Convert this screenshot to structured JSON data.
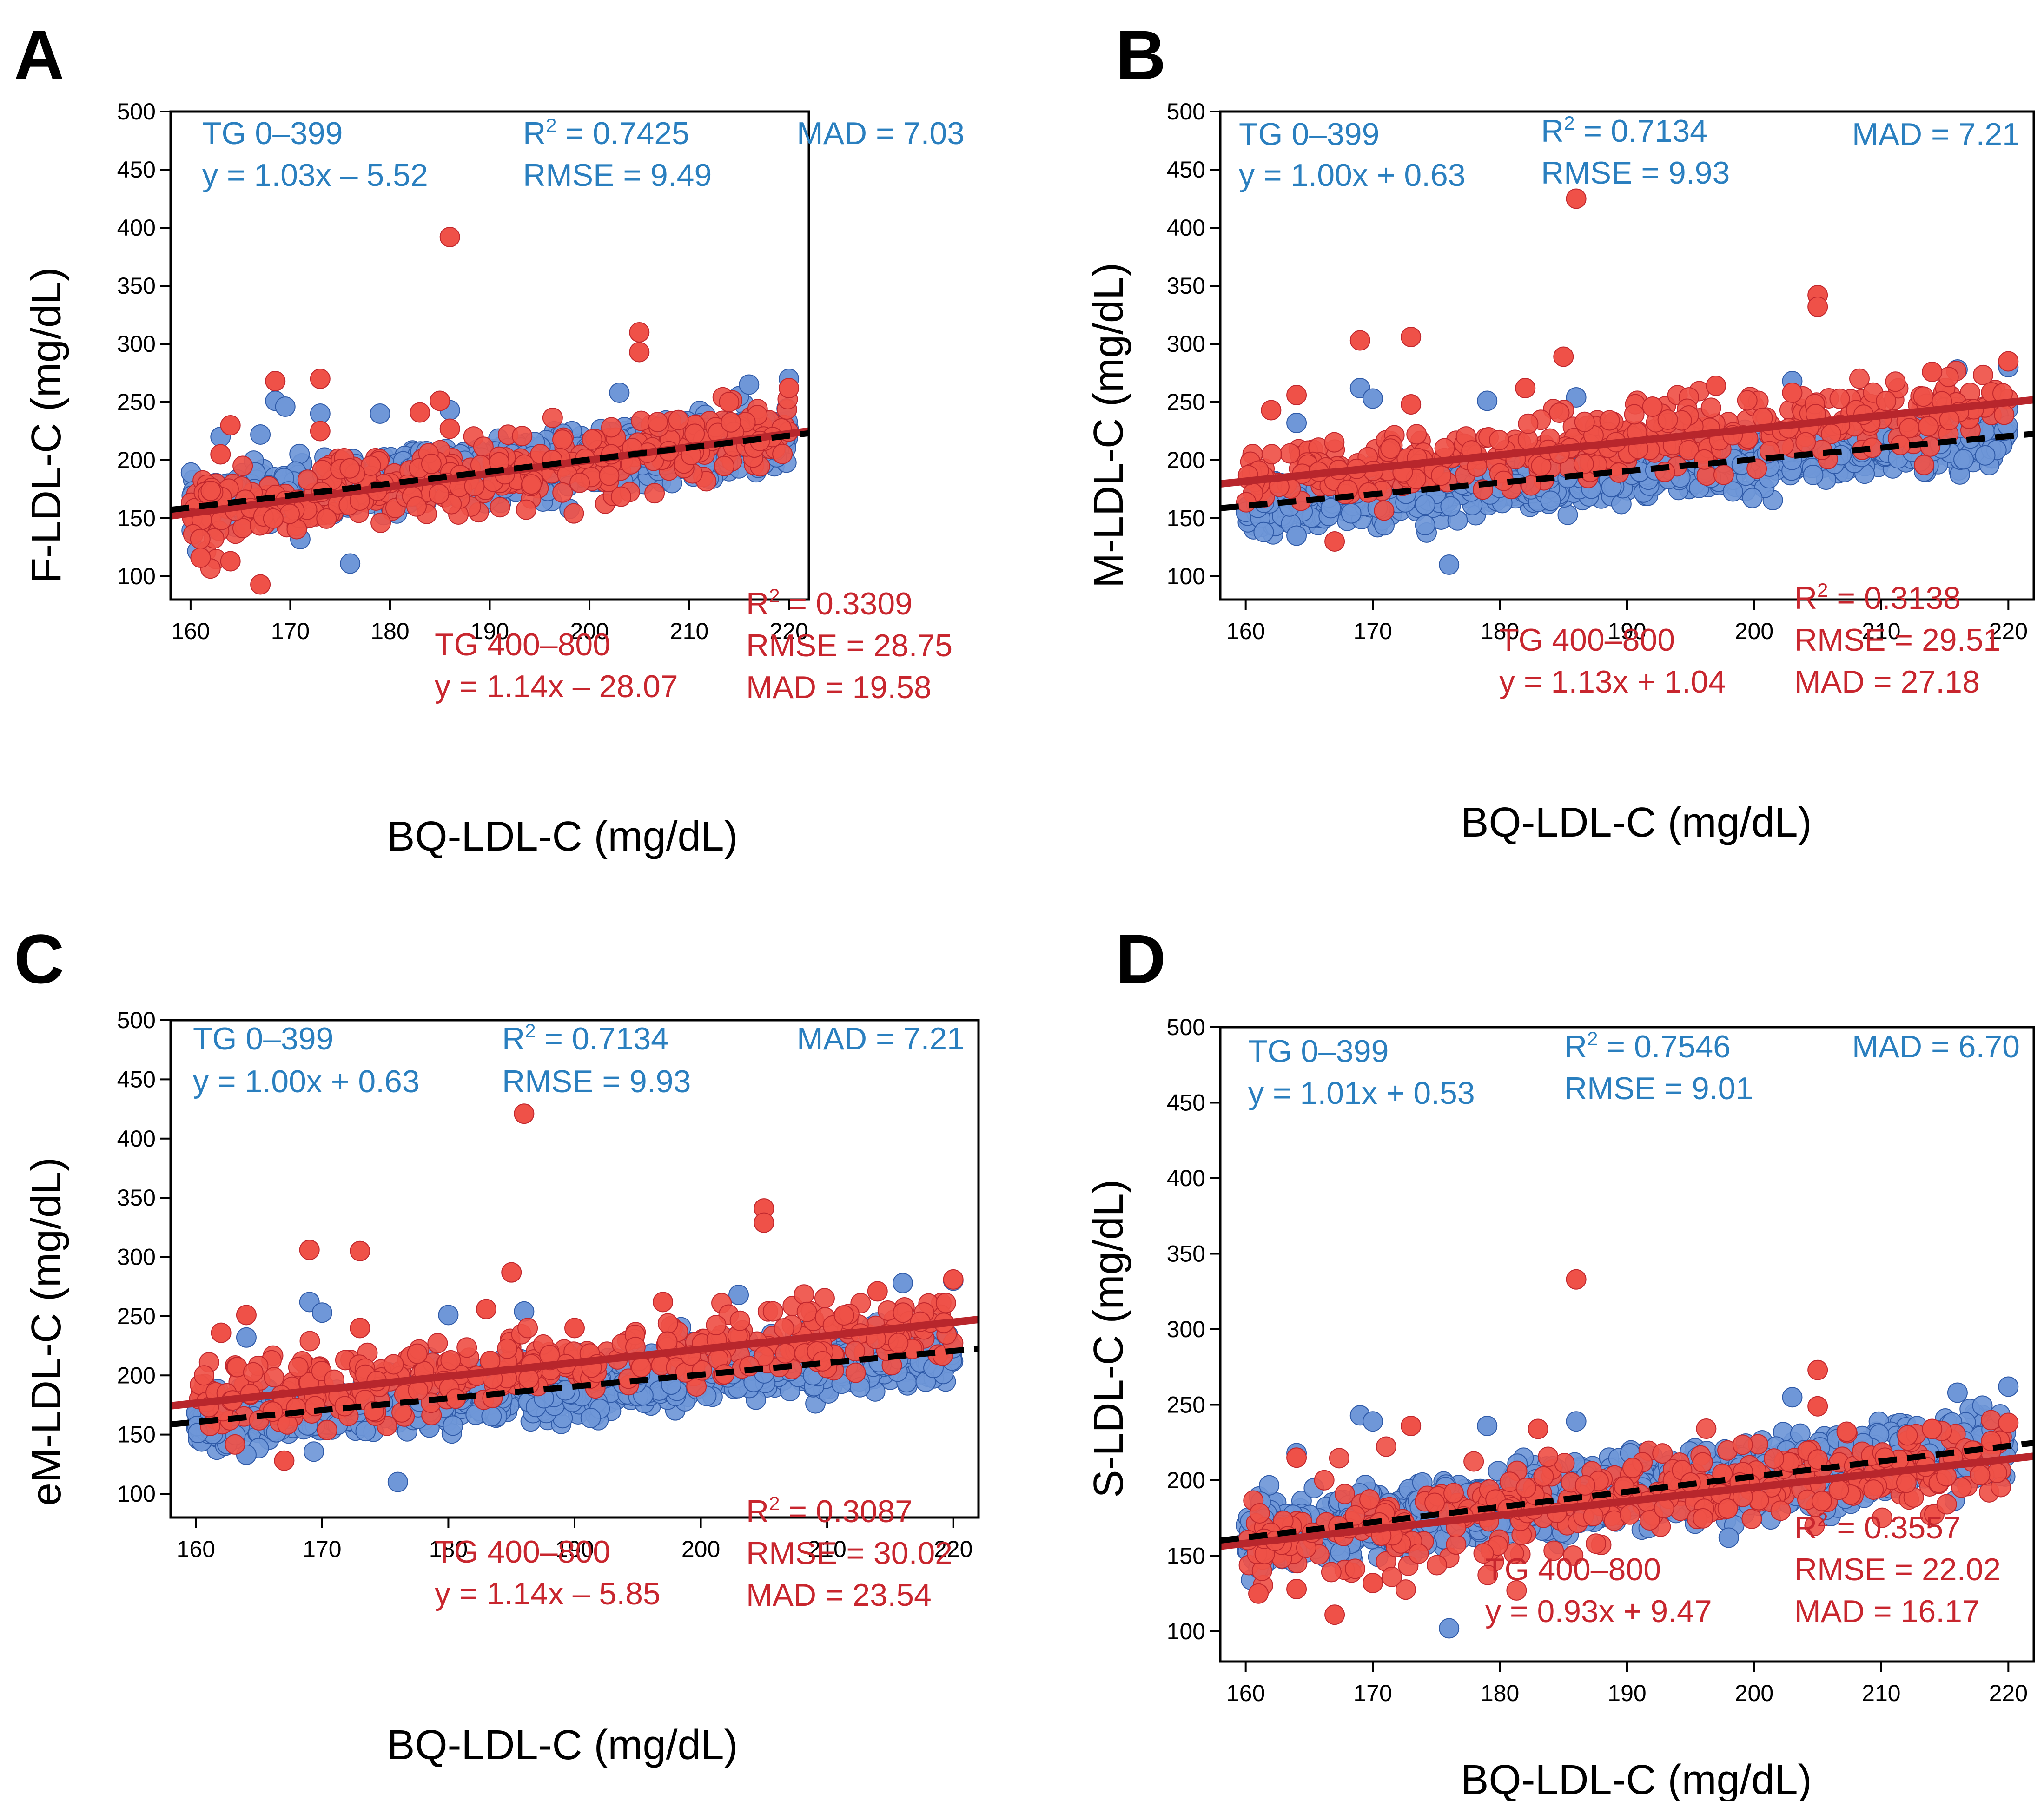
{
  "figure": {
    "colors": {
      "blue_fill": "#6f97d8",
      "blue_edge": "#2f5aa8",
      "red_fill": "#ef5148",
      "red_edge": "#c0272d",
      "red_line": "#b8262c",
      "black_line": "#000000",
      "blue_text": "#2a7fbf",
      "red_text": "#c8262e"
    }
  },
  "chart_data": [
    {
      "type": "scatter",
      "panel_label": "A",
      "xlabel": "BQ-LDL-C (mg/dL)",
      "ylabel": "F-LDL-C (mg/dL)",
      "xlim": [
        158,
        222
      ],
      "ylim": [
        80,
        500
      ],
      "xticks": [
        160,
        170,
        180,
        190,
        200,
        210,
        220
      ],
      "yticks": [
        100,
        150,
        200,
        250,
        300,
        350,
        400,
        450,
        500
      ],
      "series": [
        {
          "name": "TG 0–399",
          "color": "#6f97d8",
          "slope": 1.03,
          "intercept": -5.52,
          "fit_style": "dashed-black",
          "stats": {
            "group": "TG 0–399",
            "equation": "y = 1.03x – 5.52",
            "r2": "0.7425",
            "rmse": "RMSE = 9.49",
            "mad": "MAD = 7.03"
          },
          "outliers": [
            [
              168.5,
              251
            ],
            [
              169.5,
              246
            ],
            [
              163,
              220
            ],
            [
              167,
              222
            ],
            [
              173,
              240
            ],
            [
              179,
              240
            ],
            [
              186,
              243
            ],
            [
              203,
              258
            ],
            [
              215,
              255
            ],
            [
              216,
              265
            ],
            [
              220,
              270
            ],
            [
              176,
              111
            ],
            [
              198,
              158
            ],
            [
              171,
              132
            ]
          ]
        },
        {
          "name": "TG 400–800",
          "color": "#ef5148",
          "slope": 1.14,
          "intercept": -28.07,
          "fit_style": "solid-red",
          "stats": {
            "group": "TG 400–800",
            "equation": "y = 1.14x – 28.07",
            "r2": "0.3309",
            "rmse": "RMSE = 28.75",
            "mad": "MAD = 19.58"
          },
          "outliers": [
            [
              186,
              392
            ],
            [
              205,
              310
            ],
            [
              205,
              293
            ],
            [
              168.5,
              268
            ],
            [
              173,
              270
            ],
            [
              185,
              251
            ],
            [
              164,
              230
            ],
            [
              173,
              225
            ],
            [
              186,
              227
            ],
            [
              167,
              93
            ],
            [
              161,
              116
            ],
            [
              164,
              113
            ],
            [
              214,
              250
            ],
            [
              220,
              262
            ],
            [
              163,
              205
            ],
            [
              183,
              241
            ]
          ]
        }
      ]
    },
    {
      "type": "scatter",
      "panel_label": "B",
      "xlabel": "BQ-LDL-C (mg/dL)",
      "ylabel": "M-LDL-C (mg/dL)",
      "xlim": [
        158,
        222
      ],
      "ylim": [
        80,
        500
      ],
      "xticks": [
        160,
        170,
        180,
        190,
        200,
        210,
        220
      ],
      "yticks": [
        100,
        150,
        200,
        250,
        300,
        350,
        400,
        450,
        500
      ],
      "series": [
        {
          "name": "TG 0–399",
          "color": "#6f97d8",
          "slope": 1.0,
          "intercept": 0.63,
          "fit_style": "dashed-black",
          "stats": {
            "group": "TG 0–399",
            "equation": "y = 1.00x + 0.63",
            "r2": "0.7134",
            "rmse": "RMSE = 9.93",
            "mad": "MAD = 7.21"
          },
          "outliers": [
            [
              169,
              262
            ],
            [
              170,
              253
            ],
            [
              186,
              254
            ],
            [
              203,
              268
            ],
            [
              216,
              278
            ],
            [
              220,
              280
            ],
            [
              164,
              232
            ],
            [
              179,
              251
            ],
            [
              176,
              110
            ],
            [
              164,
              135
            ]
          ]
        },
        {
          "name": "TG 400–800",
          "color": "#ef5148",
          "slope": 1.13,
          "intercept": 1.04,
          "fit_style": "solid-red",
          "stats": {
            "group": "TG 400–800",
            "equation": "y = 1.13x + 1.04",
            "r2": "0.3138",
            "rmse": "RMSE = 29.51",
            "mad": "MAD = 27.18"
          },
          "outliers": [
            [
              186,
              425
            ],
            [
              205,
              342
            ],
            [
              205,
              332
            ],
            [
              169,
              303
            ],
            [
              173,
              306
            ],
            [
              185,
              289
            ],
            [
              164,
              256
            ],
            [
              173,
              248
            ],
            [
              182,
              262
            ],
            [
              197,
              264
            ],
            [
              203,
              258
            ],
            [
              214,
              276
            ],
            [
              220,
              285
            ],
            [
              167,
              130
            ],
            [
              162,
              243
            ],
            [
              192,
              246
            ]
          ]
        }
      ]
    },
    {
      "type": "scatter",
      "panel_label": "C",
      "xlabel": "BQ-LDL-C (mg/dL)",
      "ylabel": "eM-LDL-C (mg/dL)",
      "xlim": [
        158,
        222
      ],
      "ylim": [
        80,
        500
      ],
      "xticks": [
        160,
        170,
        180,
        190,
        200,
        210,
        220
      ],
      "yticks": [
        100,
        150,
        200,
        250,
        300,
        350,
        400,
        450,
        500
      ],
      "series": [
        {
          "name": "TG 0–399",
          "color": "#6f97d8",
          "slope": 1.0,
          "intercept": 0.63,
          "fit_style": "dashed-black",
          "stats": {
            "group": "TG 0–399",
            "equation": "y = 1.00x + 0.63",
            "r2": "0.7134",
            "rmse": "RMSE = 9.93",
            "mad": "MAD = 7.21"
          },
          "outliers": [
            [
              169,
              262
            ],
            [
              170,
              253
            ],
            [
              186,
              254
            ],
            [
              203,
              268
            ],
            [
              216,
              278
            ],
            [
              220,
              280
            ],
            [
              164,
              232
            ],
            [
              180,
              251
            ],
            [
              176,
              110
            ],
            [
              164,
              133
            ]
          ]
        },
        {
          "name": "TG 400–800",
          "color": "#ef5148",
          "slope": 1.14,
          "intercept": -5.85,
          "fit_style": "solid-red",
          "stats": {
            "group": "TG 400–800",
            "equation": "y = 1.14x – 5.85",
            "r2": "0.3087",
            "rmse": "RMSE = 30.02",
            "mad": "MAD = 23.54"
          },
          "outliers": [
            [
              186,
              421
            ],
            [
              205,
              341
            ],
            [
              205,
              329
            ],
            [
              169,
              306
            ],
            [
              173,
              305
            ],
            [
              185,
              287
            ],
            [
              164,
              251
            ],
            [
              173,
              240
            ],
            [
              183,
              256
            ],
            [
              197,
              262
            ],
            [
              214,
              271
            ],
            [
              220,
              281
            ],
            [
              167,
              128
            ],
            [
              162,
              236
            ],
            [
              190,
              240
            ]
          ]
        }
      ]
    },
    {
      "type": "scatter",
      "panel_label": "D",
      "xlabel": "BQ-LDL-C (mg/dL)",
      "ylabel": "S-LDL-C (mg/dL)",
      "xlim": [
        158,
        222
      ],
      "ylim": [
        80,
        500
      ],
      "xticks": [
        160,
        170,
        180,
        190,
        200,
        210,
        220
      ],
      "yticks": [
        100,
        150,
        200,
        250,
        300,
        350,
        400,
        450,
        500
      ],
      "series": [
        {
          "name": "TG 0–399",
          "color": "#6f97d8",
          "slope": 1.01,
          "intercept": 0.53,
          "fit_style": "dashed-black",
          "stats": {
            "group": "TG 0–399",
            "equation": "y = 1.01x + 0.53",
            "r2": "0.7546",
            "rmse": "RMSE = 9.01",
            "mad": "MAD = 6.70"
          },
          "outliers": [
            [
              169,
              243
            ],
            [
              170,
              239
            ],
            [
              186,
              239
            ],
            [
              203,
              255
            ],
            [
              216,
              258
            ],
            [
              220,
              262
            ],
            [
              164,
              218
            ],
            [
              179,
              236
            ],
            [
              176,
              102
            ],
            [
              198,
              162
            ],
            [
              161,
              142
            ]
          ]
        },
        {
          "name": "TG 400–800",
          "color": "#ef5148",
          "slope": 0.93,
          "intercept": 9.47,
          "fit_style": "solid-red",
          "stats": {
            "group": "TG 400–800",
            "equation": "y = 0.93x + 9.47",
            "r2": "0.3557",
            "rmse": "RMSE = 22.02",
            "mad": "MAD = 16.17"
          },
          "outliers": [
            [
              186,
              333
            ],
            [
              205,
              273
            ],
            [
              205,
              249
            ],
            [
              173,
              236
            ],
            [
              183,
              234
            ],
            [
              167,
              111
            ],
            [
              161,
              125
            ],
            [
              164,
              128
            ],
            [
              170,
              132
            ],
            [
              214,
              234
            ],
            [
              220,
              238
            ],
            [
              164,
              215
            ]
          ]
        }
      ]
    }
  ]
}
